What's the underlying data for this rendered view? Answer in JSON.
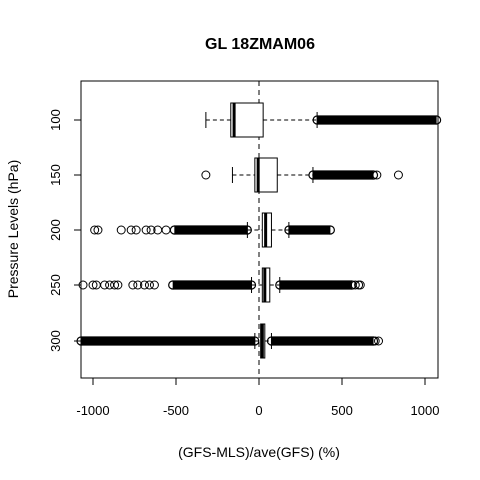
{
  "chart_data": {
    "type": "boxplot",
    "orientation": "horizontal",
    "title": "GL 18ZMAM06",
    "xlabel": "(GFS-MLS)/ave(GFS) (%)",
    "ylabel": "Pressure Levels (hPa)",
    "xlim": [
      -1100,
      1080
    ],
    "x_ticks": [
      -1000,
      -500,
      0,
      500,
      1000
    ],
    "x_tick_labels": [
      "-1000",
      "-500",
      "0",
      "500",
      "1000"
    ],
    "reference_line": {
      "x": 0,
      "style": "dashed",
      "orientation": "vertical"
    },
    "grid": false,
    "categories": [
      "100",
      "150",
      "200",
      "250",
      "300"
    ],
    "boxes": [
      {
        "label": "100",
        "whisker_low": -320,
        "q1": -170,
        "median": -150,
        "q3": 25,
        "whisker_high": 350,
        "outlier_ranges": [
          [
            350,
            1070
          ]
        ],
        "outliers": []
      },
      {
        "label": "150",
        "whisker_low": -160,
        "q1": -25,
        "median": -5,
        "q3": 110,
        "whisker_high": 325,
        "outlier_ranges": [
          [
            325,
            690
          ]
        ],
        "outliers": [
          -320,
          710,
          840
        ]
      },
      {
        "label": "200",
        "whisker_low": -70,
        "q1": 20,
        "median": 40,
        "q3": 75,
        "whisker_high": 180,
        "outlier_ranges": [
          [
            -510,
            -70
          ],
          [
            180,
            430
          ]
        ],
        "outliers": [
          -990,
          -970,
          -830,
          -770,
          -740,
          -680,
          -650,
          -610,
          -560
        ]
      },
      {
        "label": "250",
        "whisker_low": -45,
        "q1": 20,
        "median": 35,
        "q3": 65,
        "whisker_high": 125,
        "outlier_ranges": [
          [
            -520,
            -45
          ],
          [
            125,
            560
          ]
        ],
        "outliers": [
          -1060,
          -1000,
          -980,
          -930,
          -900,
          -870,
          -850,
          -760,
          -730,
          -690,
          -660,
          -630,
          580,
          600,
          610
        ]
      },
      {
        "label": "300",
        "whisker_low": -25,
        "q1": 10,
        "median": 20,
        "q3": 35,
        "whisker_high": 75,
        "outlier_ranges": [
          [
            -1100,
            -25
          ],
          [
            75,
            690
          ]
        ],
        "outliers": [
          700,
          720
        ]
      }
    ]
  }
}
